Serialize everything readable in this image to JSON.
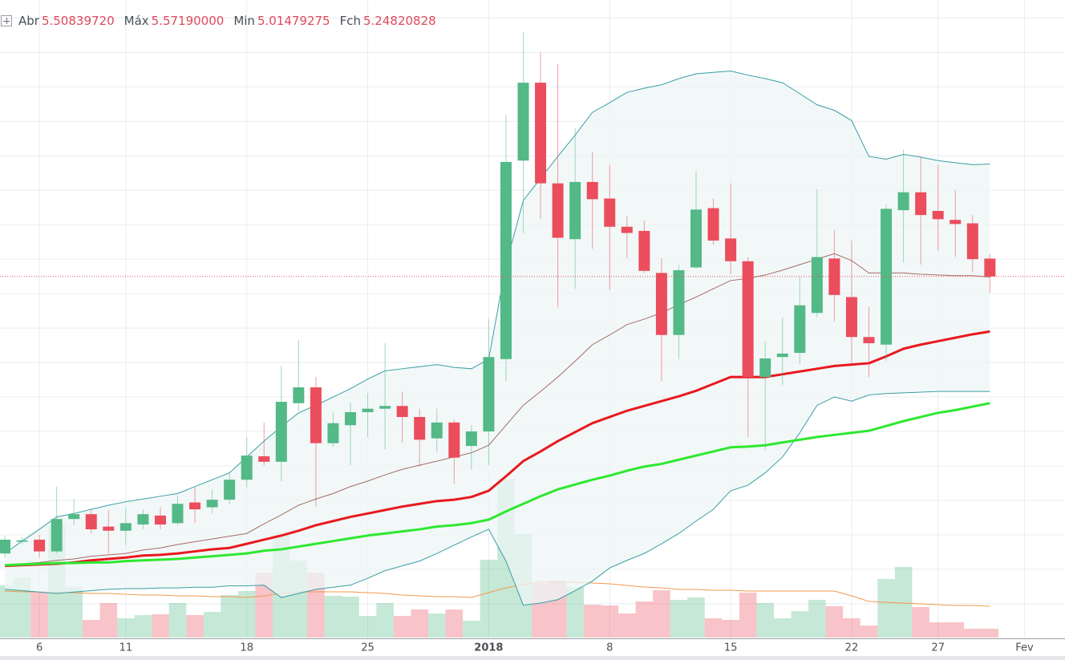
{
  "chart_data": {
    "type": "candlestick",
    "ohlc_legend": {
      "labels": [
        "Abr",
        "Máx",
        "Min",
        "Fch"
      ],
      "value_labels": [
        "5.50839720",
        "5.57190000",
        "5.01479275",
        "5.24820828"
      ]
    },
    "categories": [
      null,
      null,
      "6",
      null,
      null,
      null,
      null,
      "11",
      null,
      null,
      null,
      null,
      null,
      null,
      "18",
      null,
      null,
      null,
      null,
      null,
      null,
      "25",
      null,
      null,
      null,
      null,
      null,
      null,
      "2018",
      null,
      null,
      null,
      null,
      null,
      null,
      "8",
      null,
      null,
      null,
      null,
      null,
      null,
      "15",
      null,
      null,
      null,
      null,
      null,
      null,
      "22",
      null,
      null,
      null,
      null,
      "27",
      null,
      null,
      null,
      null,
      "Fev"
    ],
    "open": [
      1.23,
      1.4,
      1.43,
      1.26,
      1.73,
      1.8,
      1.62,
      1.56,
      1.65,
      1.78,
      1.67,
      1.97,
      1.9,
      2.01,
      2.3,
      2.64,
      2.56,
      3.41,
      3.64,
      2.83,
      3.09,
      3.28,
      3.33,
      3.37,
      3.21,
      2.9,
      3.13,
      2.79,
      3.0,
      4.05,
      6.93,
      8.06,
      6.6,
      5.79,
      6.62,
      6.38,
      5.97,
      5.91,
      5.3,
      4.4,
      5.38,
      6.24,
      5.8,
      5.47,
      3.79,
      4.08,
      4.14,
      4.72,
      5.51,
      4.95,
      4.37,
      4.26,
      6.21,
      6.47,
      6.2,
      6.07,
      6.02,
      5.5083972,
      null,
      null
    ],
    "high": [
      1.49,
      1.47,
      1.5,
      2.2,
      2.02,
      1.86,
      1.86,
      1.9,
      1.87,
      1.9,
      2.07,
      2.19,
      2.16,
      2.4,
      2.92,
      3.13,
      3.95,
      4.33,
      3.79,
      3.27,
      3.42,
      3.56,
      4.28,
      3.58,
      3.33,
      3.33,
      3.17,
      3.09,
      4.63,
      7.59,
      8.79,
      8.5,
      8.33,
      7.4,
      7.05,
      6.87,
      6.12,
      6.06,
      5.51,
      5.42,
      6.78,
      6.38,
      6.6,
      5.53,
      4.31,
      4.65,
      5.24,
      6.52,
      5.92,
      5.77,
      4.81,
      6.29,
      7.09,
      6.99,
      6.87,
      6.5,
      6.14,
      5.5719,
      null,
      null
    ],
    "low": [
      1.17,
      1.37,
      1.17,
      1.23,
      1.64,
      1.52,
      1.23,
      1.35,
      1.58,
      1.58,
      1.64,
      1.67,
      1.81,
      1.95,
      2.19,
      2.51,
      2.28,
      3.3,
      1.91,
      2.78,
      2.51,
      2.92,
      2.74,
      2.84,
      2.49,
      2.69,
      2.24,
      2.45,
      2.51,
      3.73,
      5.88,
      6.09,
      4.8,
      5.07,
      5.65,
      5.05,
      5.51,
      5.3,
      3.73,
      4.05,
      5.36,
      5.71,
      5.28,
      2.92,
      2.72,
      3.67,
      3.97,
      4.66,
      4.6,
      3.97,
      3.79,
      4.02,
      5.45,
      5.42,
      5.62,
      5.53,
      5.31,
      5.01479275,
      null,
      null
    ],
    "close": [
      1.43,
      1.42,
      1.26,
      1.73,
      1.8,
      1.58,
      1.56,
      1.67,
      1.8,
      1.65,
      1.95,
      1.87,
      2.01,
      2.3,
      2.65,
      2.56,
      3.43,
      3.64,
      2.83,
      3.12,
      3.28,
      3.33,
      3.37,
      3.21,
      2.88,
      3.13,
      2.62,
      3.0,
      4.08,
      6.91,
      8.06,
      6.6,
      5.81,
      6.62,
      6.37,
      5.97,
      5.88,
      5.33,
      4.4,
      5.34,
      6.22,
      5.77,
      5.47,
      3.79,
      4.06,
      4.13,
      4.83,
      5.53,
      4.98,
      4.37,
      4.28,
      6.23,
      6.47,
      6.14,
      6.08,
      6.01,
      5.5,
      5.24820828,
      null,
      null
    ],
    "volume": [
      65,
      75,
      57,
      140,
      63,
      22,
      43,
      24,
      28,
      29,
      43,
      28,
      32,
      53,
      58,
      81,
      128,
      96,
      81,
      52,
      51,
      27,
      43,
      27,
      35,
      30,
      35,
      21,
      97,
      198,
      129,
      68,
      71,
      63,
      41,
      40,
      30,
      45,
      59,
      47,
      50,
      24,
      22,
      56,
      43,
      24,
      33,
      47,
      39,
      24,
      15,
      73,
      88,
      38,
      19,
      19,
      11,
      11,
      null,
      null
    ],
    "up_color": "#53b987",
    "down_color": "#eb4d5c",
    "band": {
      "color": "#3a9ea5",
      "fill": "#eef6f6",
      "upper": [
        1.23,
        1.41,
        1.58,
        1.76,
        1.81,
        1.87,
        1.93,
        1.98,
        2.02,
        2.06,
        2.1,
        2.2,
        2.3,
        2.4,
        2.63,
        2.86,
        3.07,
        3.27,
        3.38,
        3.5,
        3.62,
        3.76,
        3.88,
        3.91,
        3.94,
        3.97,
        3.93,
        3.91,
        4.05,
        5.42,
        6.35,
        6.67,
        6.99,
        7.3,
        7.63,
        7.77,
        7.92,
        7.98,
        8.03,
        8.12,
        8.19,
        8.21,
        8.23,
        8.17,
        8.12,
        8.06,
        7.9,
        7.74,
        7.66,
        7.51,
        6.99,
        6.95,
        7.02,
        6.98,
        6.93,
        6.9,
        6.87,
        6.88,
        null,
        null
      ],
      "lower": [
        0.71,
        0.69,
        0.67,
        0.65,
        0.67,
        0.69,
        0.71,
        0.72,
        0.72,
        0.73,
        0.73,
        0.74,
        0.74,
        0.76,
        0.76,
        0.77,
        0.59,
        0.65,
        0.71,
        0.74,
        0.77,
        0.87,
        0.98,
        1.05,
        1.12,
        1.23,
        1.35,
        1.47,
        1.58,
        1.12,
        0.48,
        0.51,
        0.56,
        0.69,
        0.83,
        1.02,
        1.13,
        1.23,
        1.37,
        1.52,
        1.7,
        1.87,
        2.14,
        2.22,
        2.4,
        2.63,
        2.98,
        3.38,
        3.5,
        3.44,
        3.53,
        3.55,
        3.56,
        3.57,
        3.58,
        3.58,
        3.58,
        3.58,
        null,
        null
      ]
    },
    "basis": {
      "color": "#a56b64",
      "values": [
        1.06,
        1.08,
        1.1,
        1.13,
        1.15,
        1.19,
        1.21,
        1.23,
        1.28,
        1.31,
        1.36,
        1.4,
        1.44,
        1.48,
        1.52,
        1.66,
        1.79,
        1.93,
        2.02,
        2.1,
        2.2,
        2.28,
        2.37,
        2.45,
        2.51,
        2.57,
        2.63,
        2.69,
        2.8,
        3.09,
        3.38,
        3.58,
        3.79,
        4.02,
        4.26,
        4.4,
        4.55,
        4.63,
        4.72,
        4.84,
        4.95,
        5.07,
        5.19,
        5.22,
        5.27,
        5.34,
        5.42,
        5.5,
        5.58,
        5.48,
        5.3,
        5.3,
        5.3,
        5.28,
        5.27,
        5.26,
        5.26,
        5.24,
        null,
        null
      ]
    },
    "moving_averages": [
      {
        "color": "#e8191e",
        "values": [
          1.05,
          1.06,
          1.07,
          1.08,
          1.1,
          1.13,
          1.15,
          1.17,
          1.2,
          1.21,
          1.23,
          1.26,
          1.29,
          1.31,
          1.37,
          1.43,
          1.49,
          1.56,
          1.64,
          1.7,
          1.76,
          1.81,
          1.86,
          1.91,
          1.95,
          1.99,
          2.01,
          2.05,
          2.14,
          2.35,
          2.57,
          2.71,
          2.86,
          2.99,
          3.12,
          3.21,
          3.3,
          3.37,
          3.44,
          3.51,
          3.59,
          3.69,
          3.79,
          3.79,
          3.79,
          3.83,
          3.87,
          3.91,
          3.95,
          3.97,
          3.99,
          4.09,
          4.2,
          4.26,
          4.31,
          4.36,
          4.41,
          4.45,
          null,
          null
        ]
      },
      {
        "color": "#2ee830",
        "values": [
          1.06,
          1.07,
          1.08,
          1.09,
          1.09,
          1.1,
          1.1,
          1.12,
          1.13,
          1.14,
          1.15,
          1.17,
          1.19,
          1.21,
          1.23,
          1.27,
          1.29,
          1.33,
          1.37,
          1.41,
          1.45,
          1.49,
          1.52,
          1.55,
          1.58,
          1.62,
          1.64,
          1.67,
          1.72,
          1.84,
          1.95,
          2.06,
          2.16,
          2.23,
          2.3,
          2.36,
          2.43,
          2.49,
          2.53,
          2.59,
          2.65,
          2.71,
          2.77,
          2.78,
          2.8,
          2.84,
          2.88,
          2.92,
          2.95,
          2.98,
          3.01,
          3.08,
          3.15,
          3.21,
          3.27,
          3.31,
          3.36,
          3.41,
          null,
          null
        ]
      }
    ],
    "volume_average": {
      "color": "#f29a4a",
      "values": [
        58,
        57,
        57,
        56,
        56,
        55,
        55,
        54,
        53,
        53,
        52,
        52,
        51,
        51,
        50,
        52,
        55,
        57,
        57,
        57,
        57,
        56,
        55,
        53,
        52,
        51,
        51,
        50,
        56,
        62,
        66,
        70,
        69,
        69,
        68,
        67,
        65,
        63,
        62,
        60,
        60,
        59,
        59,
        58,
        58,
        58,
        58,
        58,
        58,
        52,
        45,
        44,
        43,
        42,
        41,
        40,
        40,
        39,
        null,
        null
      ]
    },
    "ylim": [
      0.01,
      9.26
    ],
    "yticks": [
      0.5,
      1,
      1.5,
      2,
      2.5,
      3,
      3.5,
      4,
      4.5,
      5,
      5.5,
      6,
      6.5,
      7,
      7.5,
      8,
      8.5,
      9
    ],
    "volume_ylim": [
      0,
      795
    ],
    "grid": true,
    "last_price_line": true
  }
}
